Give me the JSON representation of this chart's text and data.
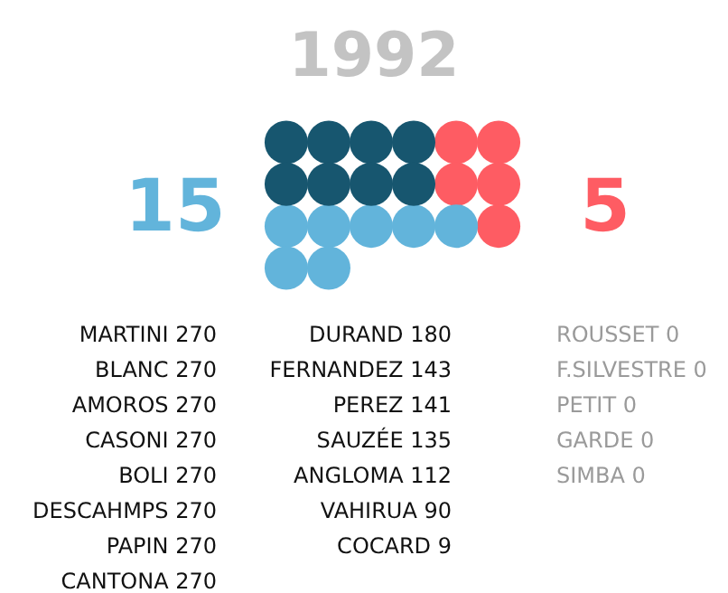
{
  "chart_data": {
    "type": "other",
    "title": "1992",
    "categories": [
      "MARTINI",
      "BLANC",
      "AMOROS",
      "CASONI",
      "BOLI",
      "DESCAHMPS",
      "PAPIN",
      "CANTONA",
      "DURAND",
      "FERNANDEZ",
      "PEREZ",
      "SAUZÉE",
      "ANGLOMA",
      "VAHIRUA",
      "COCARD",
      "ROUSSET",
      "F.SILVESTRE",
      "PETIT",
      "GARDE",
      "SIMBA"
    ],
    "series": [
      {
        "color": "#17566f",
        "values": [
          270,
          270,
          270,
          270,
          270,
          270,
          270,
          270,
          null,
          null,
          null,
          null,
          null,
          null,
          null,
          null,
          null,
          null,
          null,
          null
        ]
      },
      {
        "color": "#62b4db",
        "values": [
          null,
          null,
          null,
          null,
          null,
          null,
          null,
          null,
          180,
          143,
          141,
          135,
          112,
          90,
          9,
          null,
          null,
          null,
          null,
          null
        ]
      },
      {
        "color": "#fe5c63",
        "values": [
          null,
          null,
          null,
          null,
          null,
          null,
          null,
          null,
          null,
          null,
          null,
          null,
          null,
          null,
          null,
          0,
          0,
          0,
          0,
          0
        ]
      }
    ],
    "annotations": [
      "15",
      "5"
    ],
    "data_labels": true,
    "legend": false
  }
}
